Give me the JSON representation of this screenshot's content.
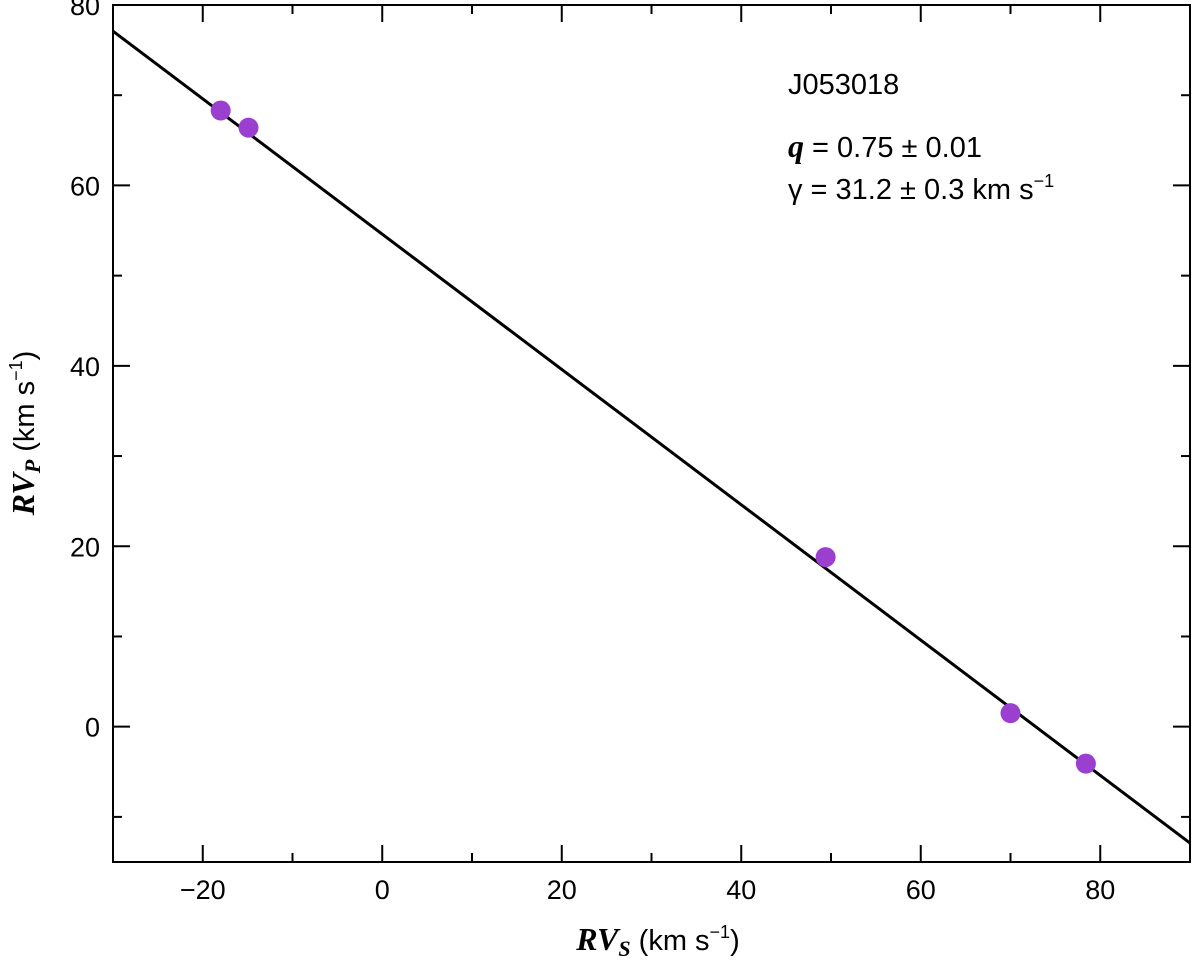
{
  "chart_data": {
    "type": "scatter",
    "title": "",
    "xlabel": {
      "main": "RV",
      "sub": "S",
      "units_pre": " (km s",
      "units_sup": "−1",
      "units_post": ")"
    },
    "ylabel": {
      "main": "RV",
      "sub": "P",
      "units_pre": " (km s",
      "units_sup": "−1",
      "units_post": ")"
    },
    "xlim": [
      -30,
      90
    ],
    "ylim": [
      -15,
      80
    ],
    "xticks_major": [
      -20,
      0,
      20,
      40,
      60,
      80
    ],
    "xticks_major_labels": [
      "−20",
      "0",
      "20",
      "40",
      "60",
      "80"
    ],
    "xticks_minor": [
      -30,
      -10,
      10,
      30,
      50,
      70,
      90
    ],
    "yticks_major": [
      0,
      20,
      40,
      60,
      80
    ],
    "yticks_major_labels": [
      "0",
      "20",
      "40",
      "60",
      "80"
    ],
    "yticks_minor": [
      -10,
      10,
      30,
      50,
      70
    ],
    "grid": false,
    "series": [
      {
        "x": [
          -18.0,
          -14.9,
          49.4,
          70.0,
          78.4
        ],
        "y": [
          68.3,
          66.4,
          18.8,
          1.5,
          -4.1
        ],
        "color": "#9b3fd1"
      }
    ],
    "fit_line": {
      "slope": -0.75,
      "intercept": 54.6,
      "color": "#000000"
    },
    "annotation": {
      "object": "J053018",
      "q_symbol": "q",
      "q_text": " = 0.75 ± 0.01",
      "gamma_text": "γ = 31.2 ± 0.3 km s",
      "gamma_sup": "−1"
    }
  }
}
